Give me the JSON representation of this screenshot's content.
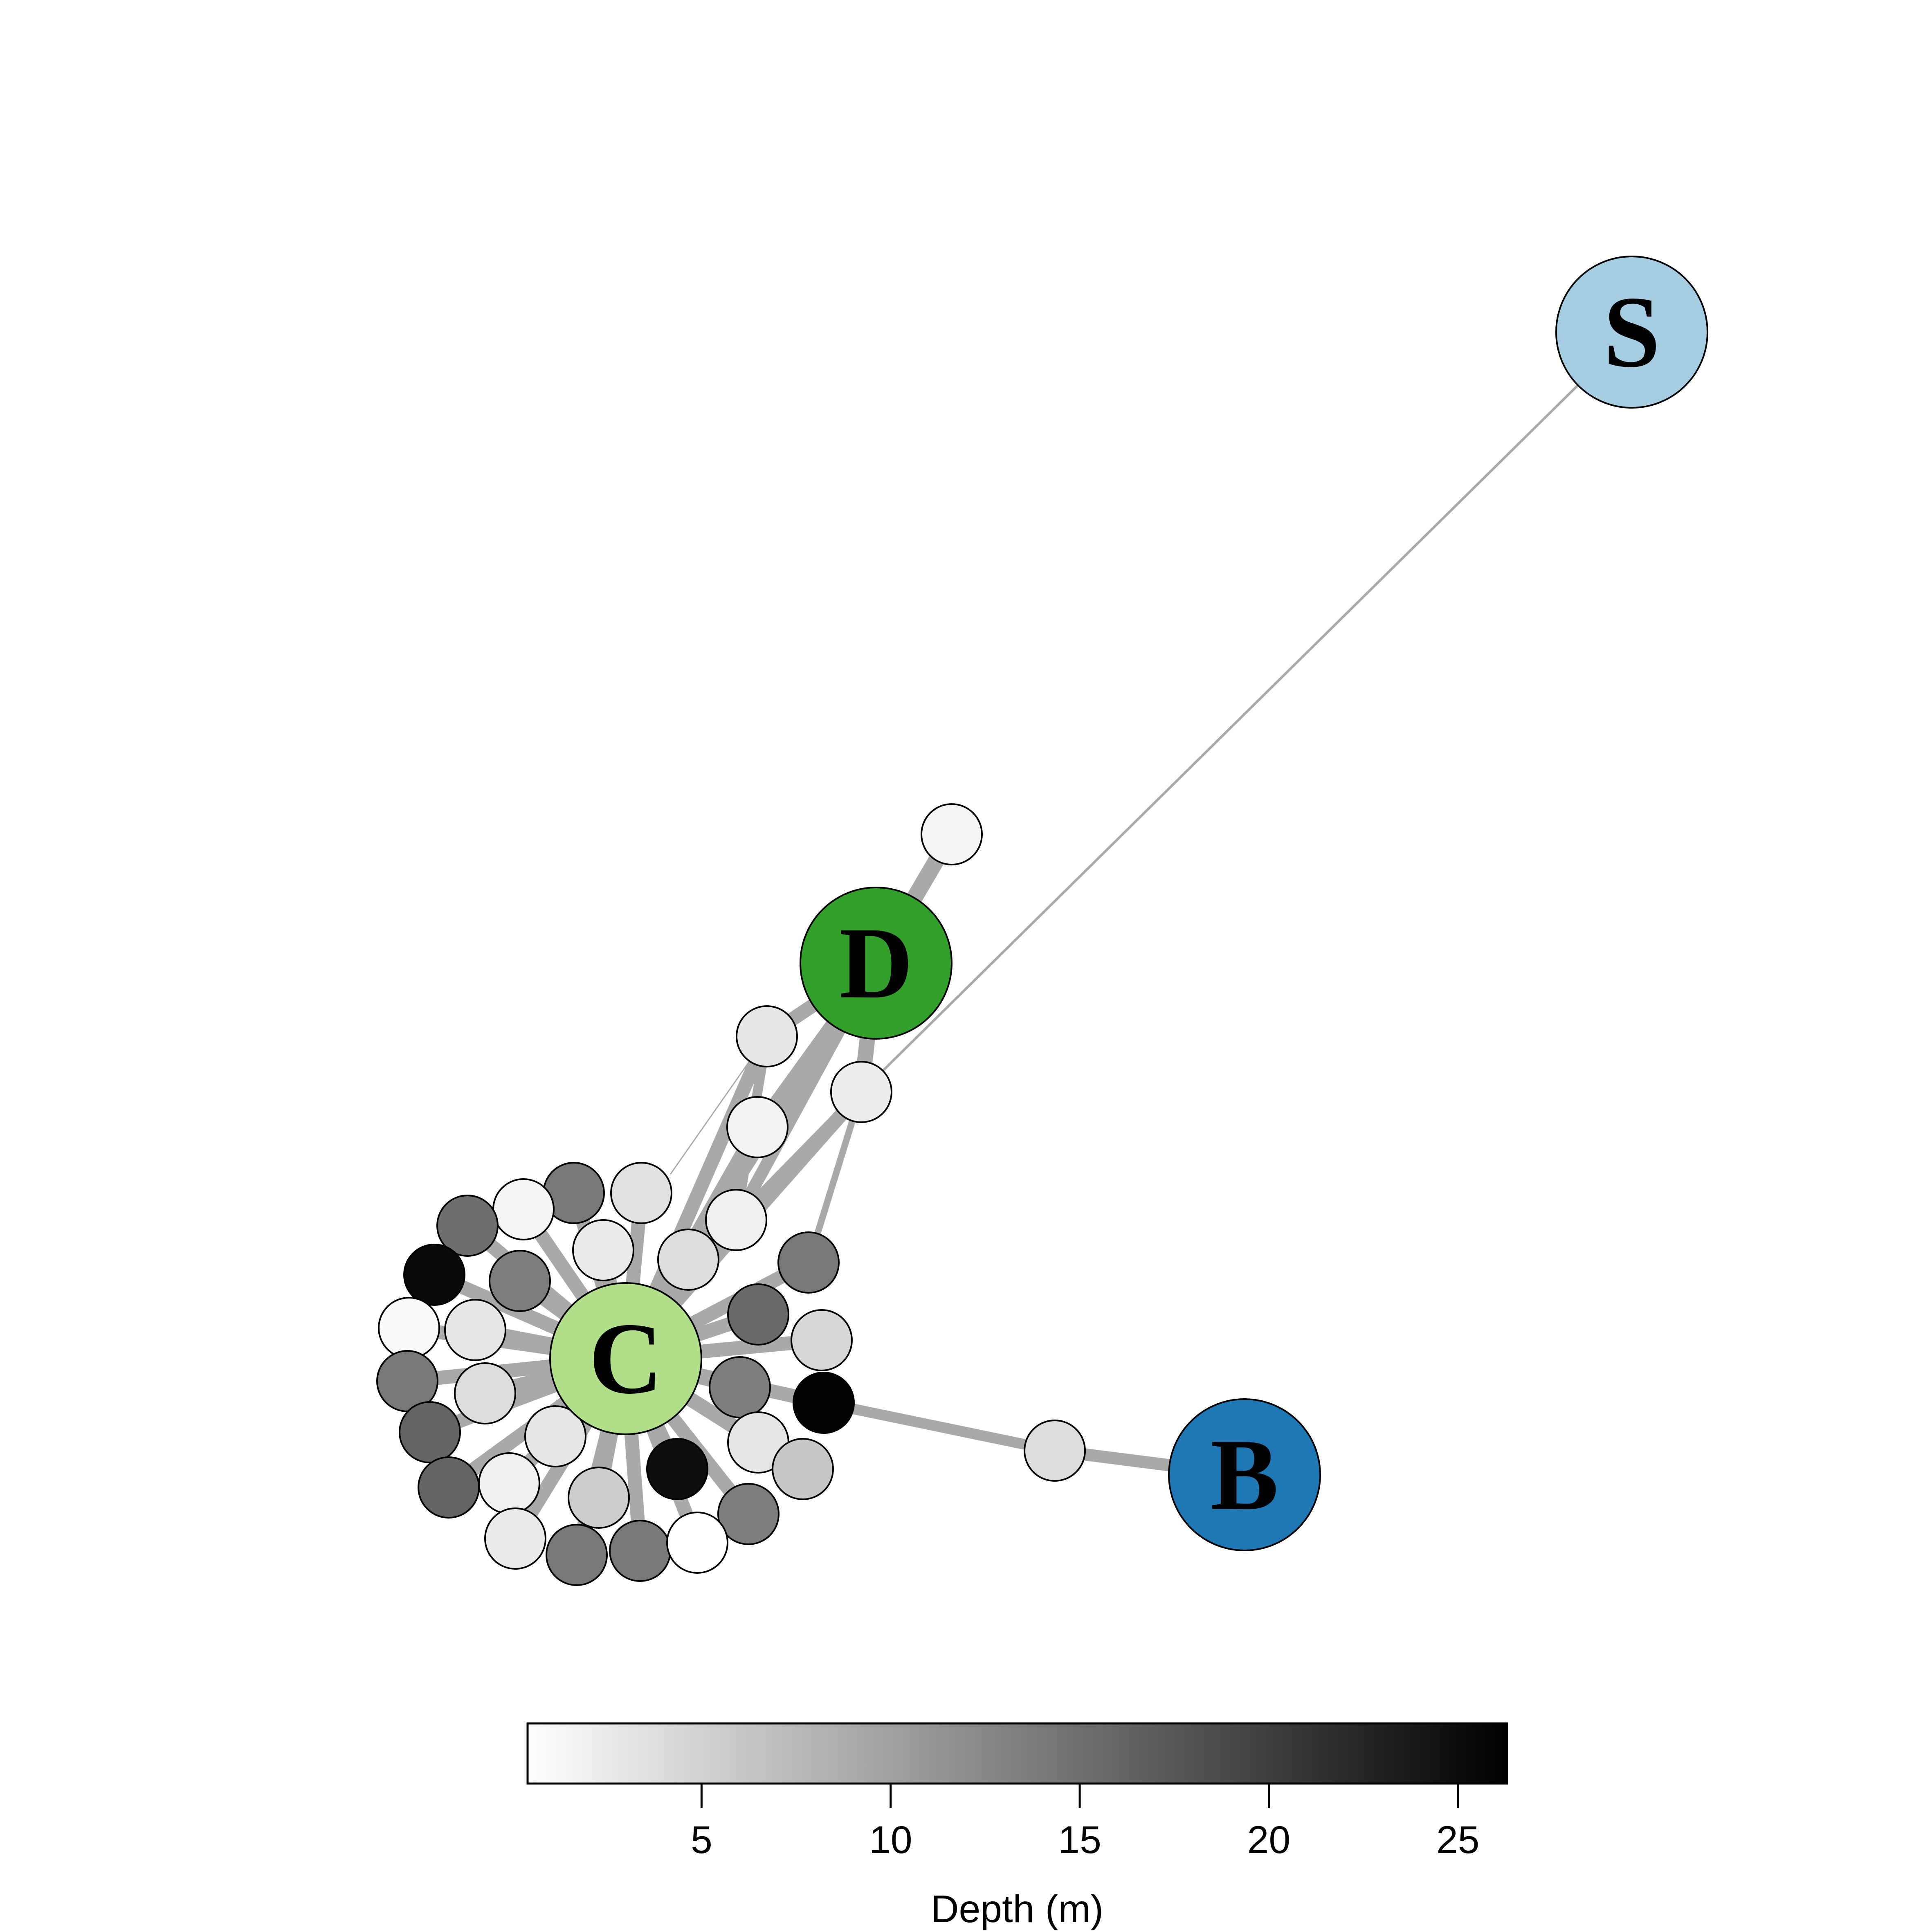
{
  "hub_nodes": [
    {
      "id": "S",
      "label": "S",
      "color": "#a6cee3"
    },
    {
      "id": "D",
      "label": "D",
      "color": "#33a02c"
    },
    {
      "id": "C",
      "label": "C",
      "color": "#b2df8a"
    },
    {
      "id": "B",
      "label": "B",
      "color": "#1f78b4"
    }
  ],
  "colorbar": {
    "title": "Depth (m)",
    "min": 0.4,
    "max": 26.3,
    "ticks": [
      5,
      10,
      15,
      20,
      25
    ],
    "tick_labels": [
      "5",
      "10",
      "15",
      "20",
      "25"
    ],
    "gradient_colors": [
      "#ffffff",
      "#000000"
    ]
  },
  "edge_color": "#a9a9a9"
}
